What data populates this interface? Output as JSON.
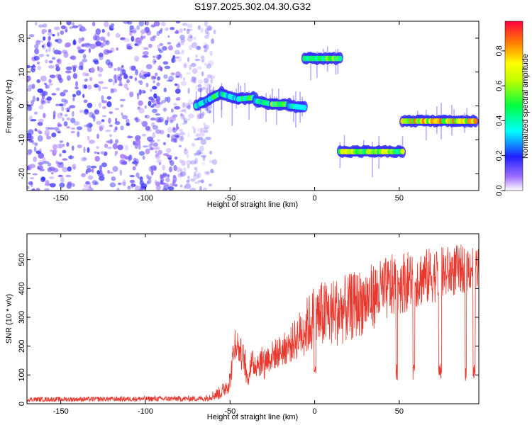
{
  "title": "S197.2025.302.04.30.G32",
  "chart_data": [
    {
      "type": "heatmap",
      "name": "spectrogram",
      "xlabel": "Height of straight line (km)",
      "ylabel": "Frequency (Hz)",
      "xlim": [
        -170,
        97
      ],
      "ylim": [
        -25,
        25
      ],
      "xticks": [
        -150,
        -100,
        -50,
        0,
        50
      ],
      "yticks": [
        -20,
        -10,
        0,
        10,
        20
      ],
      "colorbar": {
        "label": "Normalized spectral amplitude",
        "range": [
          0,
          0.97
        ],
        "ticks": [
          0,
          0.2,
          0.4,
          0.6,
          0.8
        ]
      },
      "noise_region": {
        "x": [
          -170,
          -65
        ],
        "y": [
          -25,
          25
        ],
        "amplitude": [
          0.05,
          0.2
        ]
      },
      "segments": [
        {
          "x": [
            -70,
            -62
          ],
          "freq": [
            0,
            2
          ],
          "amplitude": 0.45
        },
        {
          "x": [
            -62,
            -55
          ],
          "freq": [
            2,
            4
          ],
          "amplitude": 0.55
        },
        {
          "x": [
            -55,
            -45
          ],
          "freq": [
            3.5,
            2
          ],
          "amplitude": 0.5
        },
        {
          "x": [
            -45,
            -35
          ],
          "freq": [
            2,
            2.5
          ],
          "amplitude": 0.6
        },
        {
          "x": [
            -35,
            -25
          ],
          "freq": [
            1.5,
            0.5
          ],
          "amplitude": 0.5
        },
        {
          "x": [
            -25,
            -15
          ],
          "freq": [
            0.5,
            0.5
          ],
          "amplitude": 0.65
        },
        {
          "x": [
            -15,
            -6
          ],
          "freq": [
            0,
            -0.5
          ],
          "amplitude": 0.45
        },
        {
          "x": [
            -6,
            15
          ],
          "freq": [
            14,
            14
          ],
          "amplitude": 0.7
        },
        {
          "x": [
            15,
            52
          ],
          "freq": [
            -13.5,
            -13.5
          ],
          "amplitude": 0.75
        },
        {
          "x": [
            52,
            95
          ],
          "freq": [
            -4.5,
            -4.5
          ],
          "amplitude": 0.9
        }
      ]
    },
    {
      "type": "line",
      "name": "snr",
      "xlabel": "Height of straight line (km)",
      "ylabel": "SNR (10 * v/v)",
      "xlim": [
        -170,
        97
      ],
      "ylim": [
        0,
        590
      ],
      "xticks": [
        -150,
        -100,
        -50,
        0,
        50
      ],
      "yticks": [
        0,
        100,
        200,
        300,
        400,
        500
      ],
      "color": "#e8372c",
      "profile": [
        {
          "x": -170,
          "base": 15,
          "noise": 8
        },
        {
          "x": -65,
          "base": 18,
          "noise": 10
        },
        {
          "x": -55,
          "base": 40,
          "noise": 25
        },
        {
          "x": -50,
          "base": 80,
          "noise": 40
        },
        {
          "x": -47,
          "base": 220,
          "noise": 60
        },
        {
          "x": -40,
          "base": 130,
          "noise": 50
        },
        {
          "x": -30,
          "base": 150,
          "noise": 50
        },
        {
          "x": -15,
          "base": 200,
          "noise": 60
        },
        {
          "x": 0,
          "base": 300,
          "noise": 120
        },
        {
          "x": 20,
          "base": 330,
          "noise": 120
        },
        {
          "x": 50,
          "base": 420,
          "noise": 110
        },
        {
          "x": 97,
          "base": 480,
          "noise": 80
        }
      ]
    }
  ]
}
